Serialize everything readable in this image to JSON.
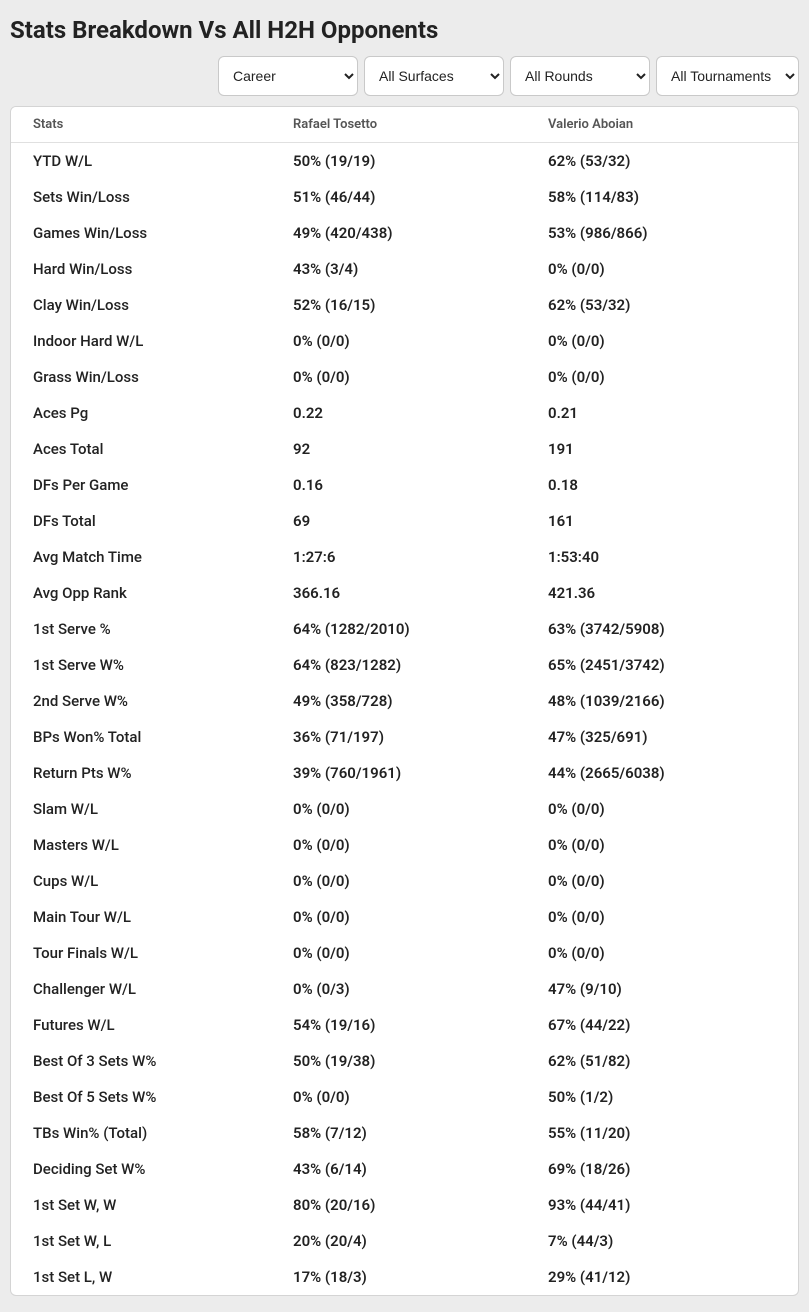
{
  "page_title": "Stats Breakdown Vs All H2H Opponents",
  "filters": {
    "period": {
      "selected": "Career"
    },
    "surface": {
      "selected": "All Surfaces"
    },
    "round": {
      "selected": "All Rounds"
    },
    "tourn": {
      "selected": "All Tournaments"
    }
  },
  "columns": {
    "stat": "Stats",
    "player1": "Rafael Tosetto",
    "player2": "Valerio Aboian"
  },
  "rows": [
    {
      "stat": "YTD W/L",
      "p1": "50% (19/19)",
      "p2": "62% (53/32)"
    },
    {
      "stat": "Sets Win/Loss",
      "p1": "51% (46/44)",
      "p2": "58% (114/83)"
    },
    {
      "stat": "Games Win/Loss",
      "p1": "49% (420/438)",
      "p2": "53% (986/866)"
    },
    {
      "stat": "Hard Win/Loss",
      "p1": "43% (3/4)",
      "p2": "0% (0/0)"
    },
    {
      "stat": "Clay Win/Loss",
      "p1": "52% (16/15)",
      "p2": "62% (53/32)"
    },
    {
      "stat": "Indoor Hard W/L",
      "p1": "0% (0/0)",
      "p2": "0% (0/0)"
    },
    {
      "stat": "Grass Win/Loss",
      "p1": "0% (0/0)",
      "p2": "0% (0/0)"
    },
    {
      "stat": "Aces Pg",
      "p1": "0.22",
      "p2": "0.21"
    },
    {
      "stat": "Aces Total",
      "p1": "92",
      "p2": "191"
    },
    {
      "stat": "DFs Per Game",
      "p1": "0.16",
      "p2": "0.18"
    },
    {
      "stat": "DFs Total",
      "p1": "69",
      "p2": "161"
    },
    {
      "stat": "Avg Match Time",
      "p1": "1:27:6",
      "p2": "1:53:40"
    },
    {
      "stat": "Avg Opp Rank",
      "p1": "366.16",
      "p2": "421.36"
    },
    {
      "stat": "1st Serve %",
      "p1": "64% (1282/2010)",
      "p2": "63% (3742/5908)"
    },
    {
      "stat": "1st Serve W%",
      "p1": "64% (823/1282)",
      "p2": "65% (2451/3742)"
    },
    {
      "stat": "2nd Serve W%",
      "p1": "49% (358/728)",
      "p2": "48% (1039/2166)"
    },
    {
      "stat": "BPs Won% Total",
      "p1": "36% (71/197)",
      "p2": "47% (325/691)"
    },
    {
      "stat": "Return Pts W%",
      "p1": "39% (760/1961)",
      "p2": "44% (2665/6038)"
    },
    {
      "stat": "Slam W/L",
      "p1": "0% (0/0)",
      "p2": "0% (0/0)"
    },
    {
      "stat": "Masters W/L",
      "p1": "0% (0/0)",
      "p2": "0% (0/0)"
    },
    {
      "stat": "Cups W/L",
      "p1": "0% (0/0)",
      "p2": "0% (0/0)"
    },
    {
      "stat": "Main Tour W/L",
      "p1": "0% (0/0)",
      "p2": "0% (0/0)"
    },
    {
      "stat": "Tour Finals W/L",
      "p1": "0% (0/0)",
      "p2": "0% (0/0)"
    },
    {
      "stat": "Challenger W/L",
      "p1": "0% (0/3)",
      "p2": "47% (9/10)"
    },
    {
      "stat": "Futures W/L",
      "p1": "54% (19/16)",
      "p2": "67% (44/22)"
    },
    {
      "stat": "Best Of 3 Sets W%",
      "p1": "50% (19/38)",
      "p2": "62% (51/82)"
    },
    {
      "stat": "Best Of 5 Sets W%",
      "p1": "0% (0/0)",
      "p2": "50% (1/2)"
    },
    {
      "stat": "TBs Win% (Total)",
      "p1": "58% (7/12)",
      "p2": "55% (11/20)"
    },
    {
      "stat": "Deciding Set W%",
      "p1": "43% (6/14)",
      "p2": "69% (18/26)"
    },
    {
      "stat": "1st Set W, W",
      "p1": "80% (20/16)",
      "p2": "93% (44/41)"
    },
    {
      "stat": "1st Set W, L",
      "p1": "20% (20/4)",
      "p2": "7% (44/3)"
    },
    {
      "stat": "1st Set L, W",
      "p1": "17% (18/3)",
      "p2": "29% (41/12)"
    }
  ]
}
